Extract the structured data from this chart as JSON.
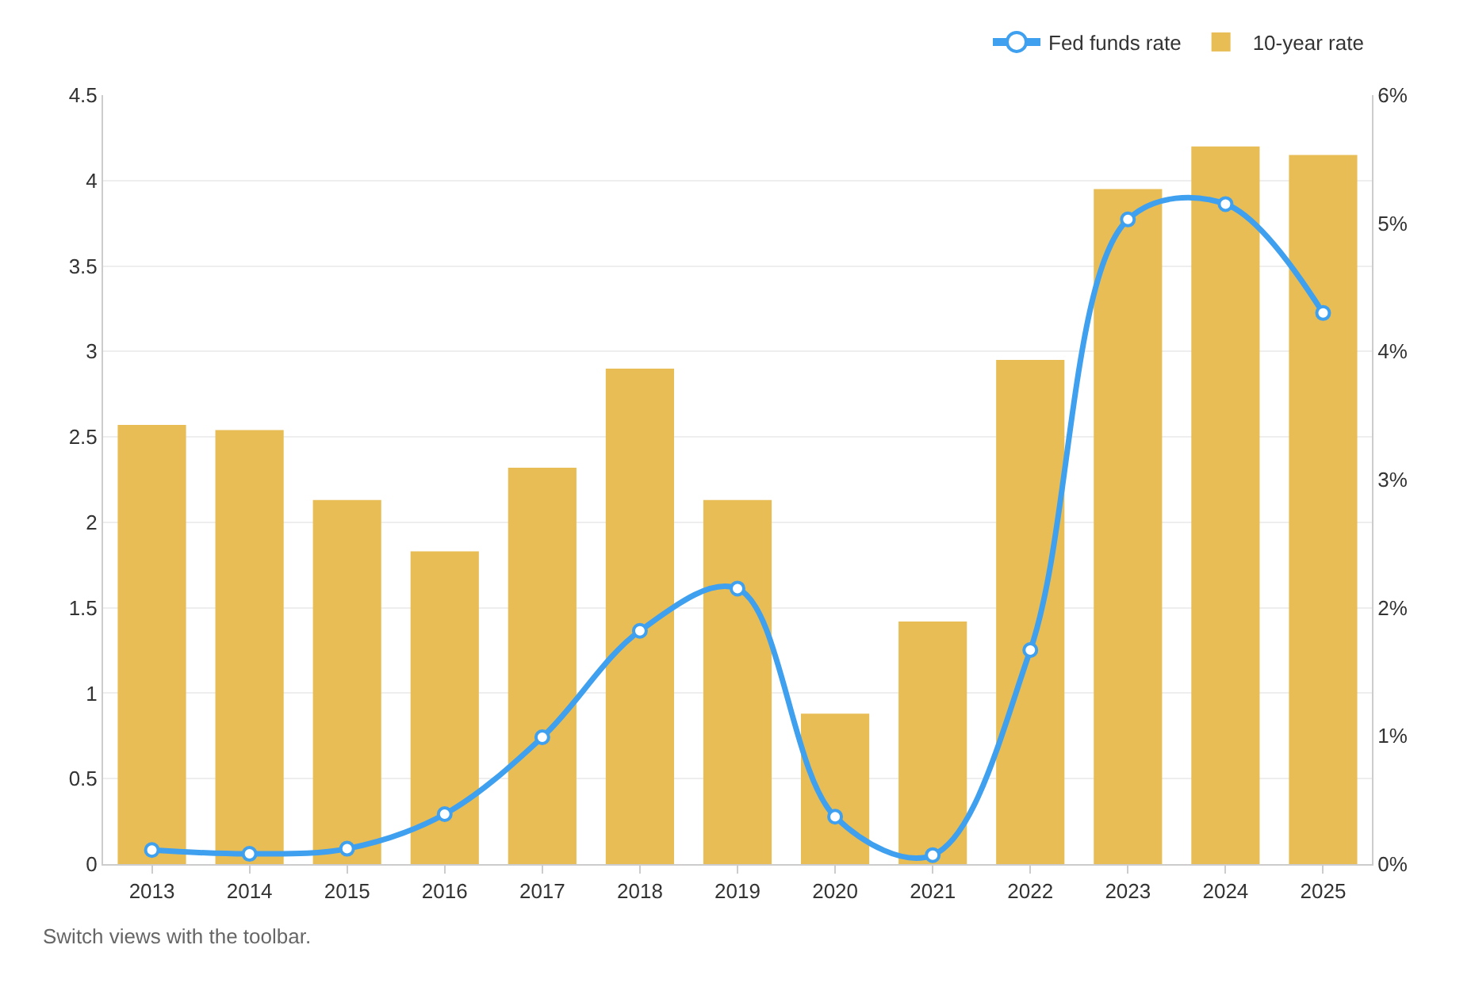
{
  "chart_data": {
    "type": "bar",
    "categories": [
      "2013",
      "2014",
      "2015",
      "2016",
      "2017",
      "2018",
      "2019",
      "2020",
      "2021",
      "2022",
      "2023",
      "2024",
      "2025"
    ],
    "series": [
      {
        "name": "Fed funds rate",
        "type": "line",
        "axis": "y2",
        "color": "#3fa0f0",
        "marker": "circle",
        "values": [
          0.11,
          0.08,
          0.12,
          0.39,
          0.99,
          1.82,
          2.15,
          0.37,
          0.07,
          1.67,
          5.03,
          5.15,
          4.3
        ]
      },
      {
        "name": "10-year rate",
        "color": "#e8bd55",
        "values": [
          2.57,
          2.54,
          2.13,
          1.83,
          2.32,
          2.9,
          2.13,
          0.88,
          1.42,
          2.95,
          3.95,
          4.2,
          4.15
        ]
      }
    ],
    "ylim": [
      0,
      4.5
    ],
    "yticks": [
      0,
      0.5,
      1,
      1.5,
      2,
      2.5,
      3,
      3.5,
      4,
      4.5
    ],
    "y2lim": [
      0,
      6
    ],
    "y2ticks": [
      {
        "value": 0,
        "label": "0%"
      },
      {
        "value": 1,
        "label": "1%"
      },
      {
        "value": 2,
        "label": "2%"
      },
      {
        "value": 3,
        "label": "3%"
      },
      {
        "value": 4,
        "label": "4%"
      },
      {
        "value": 5,
        "label": "5%"
      },
      {
        "value": 6,
        "label": "6%"
      }
    ],
    "grid": "y",
    "legend": "top right",
    "annotations": [
      "Switch views with the toolbar."
    ]
  }
}
